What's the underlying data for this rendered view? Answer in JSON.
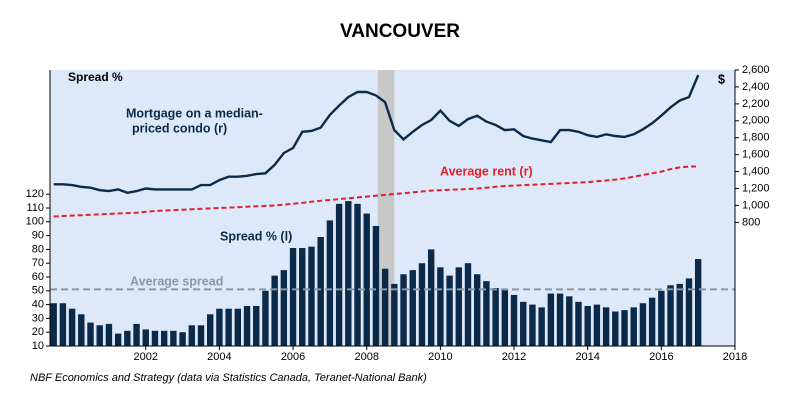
{
  "chart_data": {
    "type": "bar_line",
    "title": "VANCOUVER",
    "source": "NBF Economics and Strategy (data via Statistics Canada, Teranet-National Bank)",
    "annotations": {
      "spread_header": "Spread %",
      "right_unit": "$",
      "mortgage": [
        "Mortgage on a median-",
        "priced condo (r)"
      ],
      "rent": "Average rent (r)",
      "spread": "Spread % (l)",
      "average_spread": "Average spread"
    },
    "x": [
      1999.5,
      1999.75,
      2000,
      2000.25,
      2000.5,
      2000.75,
      2001,
      2001.25,
      2001.5,
      2001.75,
      2002,
      2002.25,
      2002.5,
      2002.75,
      2003,
      2003.25,
      2003.5,
      2003.75,
      2004,
      2004.25,
      2004.5,
      2004.75,
      2005,
      2005.25,
      2005.5,
      2005.75,
      2006,
      2006.25,
      2006.5,
      2006.75,
      2007,
      2007.25,
      2007.5,
      2007.75,
      2008,
      2008.25,
      2008.5,
      2008.75,
      2009,
      2009.25,
      2009.5,
      2009.75,
      2010,
      2010.25,
      2010.5,
      2010.75,
      2011,
      2011.25,
      2011.5,
      2011.75,
      2012,
      2012.25,
      2012.5,
      2012.75,
      2013,
      2013.25,
      2013.5,
      2013.75,
      2014,
      2014.25,
      2014.5,
      2014.75,
      2015,
      2015.25,
      2015.5,
      2015.75,
      2016,
      2016.25,
      2016.5,
      2016.75,
      2017
    ],
    "series": [
      {
        "name": "Spread % (l)",
        "kind": "bar",
        "axis": "y",
        "color": "#0b2a4a",
        "values": [
          41,
          41,
          37,
          33,
          27,
          25,
          26,
          19,
          21,
          26,
          22,
          21,
          21,
          21,
          20,
          25,
          25,
          33,
          37,
          37,
          37,
          39,
          39,
          50,
          61,
          65,
          81,
          81,
          82,
          89,
          101,
          113,
          115,
          113,
          106,
          97,
          66,
          55,
          62,
          65,
          70,
          80,
          67,
          61,
          67,
          70,
          62,
          57,
          52,
          51,
          47,
          42,
          40,
          38,
          48,
          48,
          46,
          42,
          39,
          40,
          38,
          35,
          36,
          38,
          41,
          45,
          50,
          54,
          55,
          59,
          73
        ]
      },
      {
        "name": "Mortgage on a median-priced condo (r)",
        "kind": "line",
        "axis": "y2",
        "color": "#0d2a4a",
        "dashed": false,
        "values": [
          1250,
          1250,
          1240,
          1220,
          1210,
          1180,
          1170,
          1190,
          1150,
          1170,
          1200,
          1190,
          1190,
          1190,
          1190,
          1190,
          1240,
          1240,
          1300,
          1340,
          1340,
          1350,
          1370,
          1380,
          1480,
          1620,
          1680,
          1870,
          1880,
          1920,
          2070,
          2180,
          2280,
          2340,
          2340,
          2300,
          2220,
          1890,
          1780,
          1870,
          1950,
          2010,
          2120,
          2000,
          1940,
          2020,
          2060,
          1990,
          1950,
          1890,
          1900,
          1820,
          1790,
          1770,
          1750,
          1890,
          1890,
          1870,
          1830,
          1810,
          1840,
          1820,
          1810,
          1840,
          1900,
          1970,
          2060,
          2160,
          2240,
          2280,
          2540
        ]
      },
      {
        "name": "Average rent (r)",
        "kind": "line",
        "axis": "y2",
        "color": "#e0202a",
        "dashed": true,
        "values": [
          870,
          875,
          880,
          885,
          890,
          895,
          900,
          905,
          910,
          915,
          925,
          935,
          940,
          945,
          950,
          955,
          960,
          965,
          970,
          975,
          980,
          985,
          990,
          995,
          1000,
          1010,
          1020,
          1030,
          1045,
          1055,
          1065,
          1075,
          1085,
          1095,
          1105,
          1115,
          1125,
          1135,
          1145,
          1155,
          1165,
          1175,
          1180,
          1185,
          1190,
          1195,
          1200,
          1210,
          1220,
          1230,
          1235,
          1240,
          1245,
          1250,
          1255,
          1260,
          1265,
          1270,
          1275,
          1285,
          1295,
          1305,
          1320,
          1340,
          1360,
          1380,
          1400,
          1430,
          1450,
          1460,
          1460
        ]
      }
    ],
    "average_spread": 51,
    "average_spread_color": "#8a98a8",
    "shaded_region": [
      2008.3,
      2008.75
    ],
    "xlim": [
      1999.4,
      2018.0
    ],
    "xticks": [
      2002,
      2004,
      2006,
      2008,
      2010,
      2012,
      2014,
      2016,
      2018
    ],
    "ylim": [
      10,
      210
    ],
    "yticks": [
      10,
      20,
      30,
      40,
      50,
      60,
      70,
      80,
      90,
      100,
      110,
      120
    ],
    "y2lim": [
      -660,
      2600
    ],
    "y2ticks": [
      {
        "value": 800,
        "label": "800"
      },
      {
        "value": 1000,
        "label": "1,000"
      },
      {
        "value": 1200,
        "label": "1,200"
      },
      {
        "value": 1400,
        "label": "1,400"
      },
      {
        "value": 1600,
        "label": "1,600"
      },
      {
        "value": 1800,
        "label": "1,800"
      },
      {
        "value": 2000,
        "label": "2,000"
      },
      {
        "value": 2200,
        "label": "2,200"
      },
      {
        "value": 2400,
        "label": "2,400"
      },
      {
        "value": 2600,
        "label": "2,600"
      }
    ],
    "background": "#dde9f8"
  }
}
